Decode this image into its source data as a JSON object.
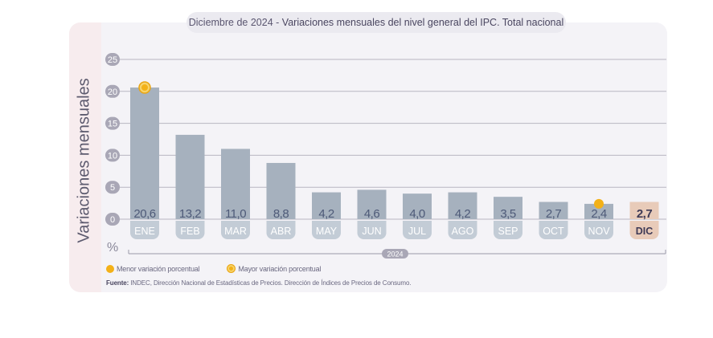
{
  "header": {
    "date_part": "Diciembre de 2024",
    "separator": "-",
    "title_part": "Variaciones mensuales del nivel general del IPC. Total nacional"
  },
  "axis": {
    "ylabel": "Variaciones mensuales",
    "unit": "%",
    "year_label": "2024"
  },
  "legend": {
    "min_label": "Menor variación porcentual",
    "max_label": "Mayor variación porcentual"
  },
  "source": {
    "label": "Fuente:",
    "text": "INDEC, Dirección Nacional de Estadísticas de Precios. Dirección de Índices de Precios de Consumo."
  },
  "colors": {
    "bar": "#a6b1be",
    "bar_highlight": "#e8cbb9",
    "marker": "#f3b118",
    "grid": "#b8b6c2",
    "label_pill": "#c3ccd6"
  },
  "chart_data": {
    "type": "bar",
    "title": "Variaciones mensuales del nivel general del IPC. Total nacional",
    "ylabel": "Variaciones mensuales",
    "unit": "%",
    "ylim": [
      0,
      25
    ],
    "yticks": [
      "0",
      "5",
      "10",
      "15",
      "20",
      "25"
    ],
    "grid": true,
    "categories": [
      "ENE",
      "FEB",
      "MAR",
      "ABR",
      "MAY",
      "JUN",
      "JUL",
      "AGO",
      "SEP",
      "OCT",
      "NOV",
      "DIC"
    ],
    "values": [
      20.6,
      13.2,
      11.0,
      8.8,
      4.2,
      4.6,
      4.0,
      4.2,
      3.5,
      2.7,
      2.4,
      2.7
    ],
    "value_labels": [
      "20,6",
      "13,2",
      "11,0",
      "8,8",
      "4,2",
      "4,6",
      "4,0",
      "4,2",
      "3,5",
      "2,7",
      "2,4",
      "2,7"
    ],
    "highlighted_category": "DIC",
    "max_marker_category": "ENE",
    "min_marker_category": "NOV",
    "year": "2024"
  }
}
